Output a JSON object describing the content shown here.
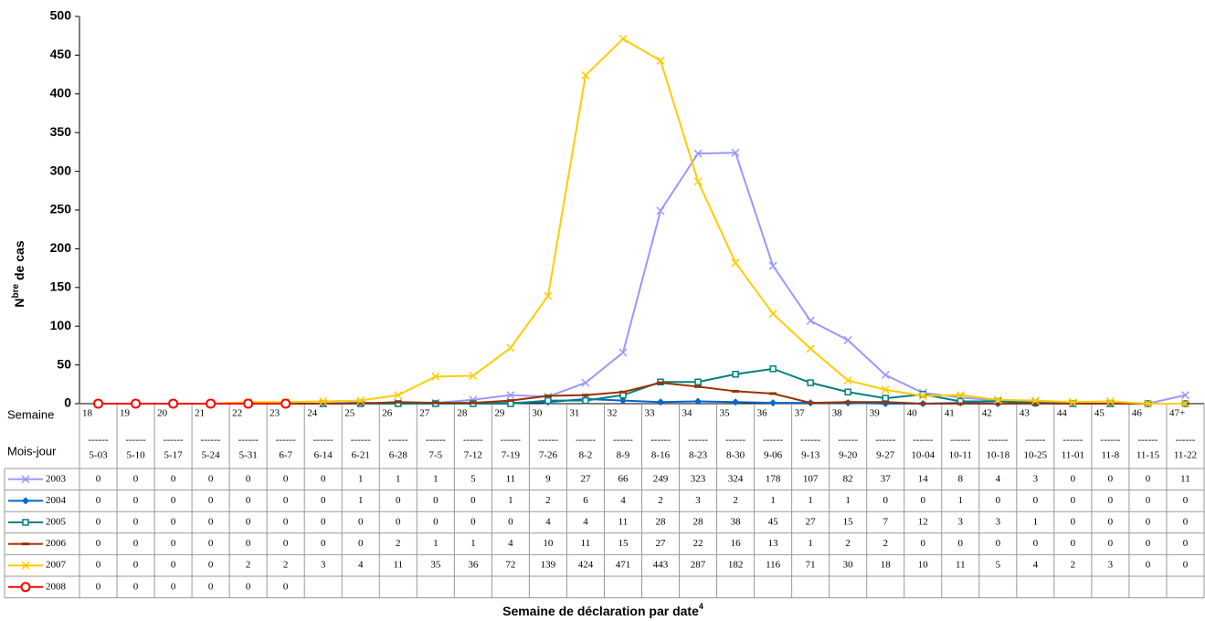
{
  "chart_data": {
    "type": "line",
    "ylabel_parts": [
      "N",
      "bre",
      " de cas"
    ],
    "xlabel": "Semaine de déclaration par date",
    "xlabel_note": "4",
    "row_labels": [
      "Semaine",
      "Mois-jour"
    ],
    "separator": "------",
    "categories": [
      "18",
      "19",
      "20",
      "21",
      "22",
      "23",
      "24",
      "25",
      "26",
      "27",
      "28",
      "29",
      "30",
      "31",
      "32",
      "33",
      "34",
      "35",
      "36",
      "37",
      "38",
      "39",
      "40",
      "41",
      "42",
      "43",
      "44",
      "45",
      "46",
      "47+"
    ],
    "dates": [
      "5-03",
      "5-10",
      "5-17",
      "5-24",
      "5-31",
      "6-7",
      "6-14",
      "6-21",
      "6-28",
      "7-5",
      "7-12",
      "7-19",
      "7-26",
      "8-2",
      "8-9",
      "8-16",
      "8-23",
      "8-30",
      "9-06",
      "9-13",
      "9-20",
      "9-27",
      "10-04",
      "10-11",
      "10-18",
      "10-25",
      "11-01",
      "11-8",
      "11-15",
      "11-22"
    ],
    "ylim": [
      0,
      500
    ],
    "yticks": [
      0,
      50,
      100,
      150,
      200,
      250,
      300,
      350,
      400,
      450,
      500
    ],
    "grid": false,
    "series": [
      {
        "name": "2003",
        "color": "#9999ff",
        "marker": "x",
        "values": [
          0,
          0,
          0,
          0,
          0,
          0,
          0,
          1,
          1,
          1,
          5,
          11,
          9,
          27,
          66,
          249,
          323,
          324,
          178,
          107,
          82,
          37,
          14,
          8,
          4,
          3,
          0,
          0,
          0,
          11
        ]
      },
      {
        "name": "2004",
        "color": "#0066cc",
        "marker": "diamond",
        "values": [
          0,
          0,
          0,
          0,
          0,
          0,
          0,
          1,
          0,
          0,
          0,
          1,
          2,
          6,
          4,
          2,
          3,
          2,
          1,
          1,
          1,
          0,
          0,
          1,
          0,
          0,
          0,
          0,
          0,
          0
        ]
      },
      {
        "name": "2005",
        "color": "#008080",
        "marker": "square",
        "values": [
          0,
          0,
          0,
          0,
          0,
          0,
          0,
          0,
          0,
          0,
          0,
          0,
          4,
          4,
          11,
          28,
          28,
          38,
          45,
          27,
          15,
          7,
          12,
          3,
          3,
          1,
          0,
          0,
          0,
          0
        ]
      },
      {
        "name": "2006",
        "color": "#993300",
        "marker": "dash",
        "values": [
          0,
          0,
          0,
          0,
          0,
          0,
          0,
          0,
          2,
          1,
          1,
          4,
          10,
          11,
          15,
          27,
          22,
          16,
          13,
          1,
          2,
          2,
          0,
          0,
          0,
          0,
          0,
          0,
          0,
          0
        ]
      },
      {
        "name": "2007",
        "color": "#ffcc00",
        "marker": "x",
        "values": [
          0,
          0,
          0,
          0,
          2,
          2,
          3,
          4,
          11,
          35,
          36,
          72,
          139,
          424,
          471,
          443,
          287,
          182,
          116,
          71,
          30,
          18,
          10,
          11,
          5,
          4,
          2,
          3,
          0,
          0
        ]
      },
      {
        "name": "2008",
        "color": "#ff0000",
        "marker": "circle",
        "values": [
          0,
          0,
          0,
          0,
          0,
          0,
          null,
          null,
          null,
          null,
          null,
          null,
          null,
          null,
          null,
          null,
          null,
          null,
          null,
          null,
          null,
          null,
          null,
          null,
          null,
          null,
          null,
          null,
          null,
          null
        ]
      }
    ]
  }
}
